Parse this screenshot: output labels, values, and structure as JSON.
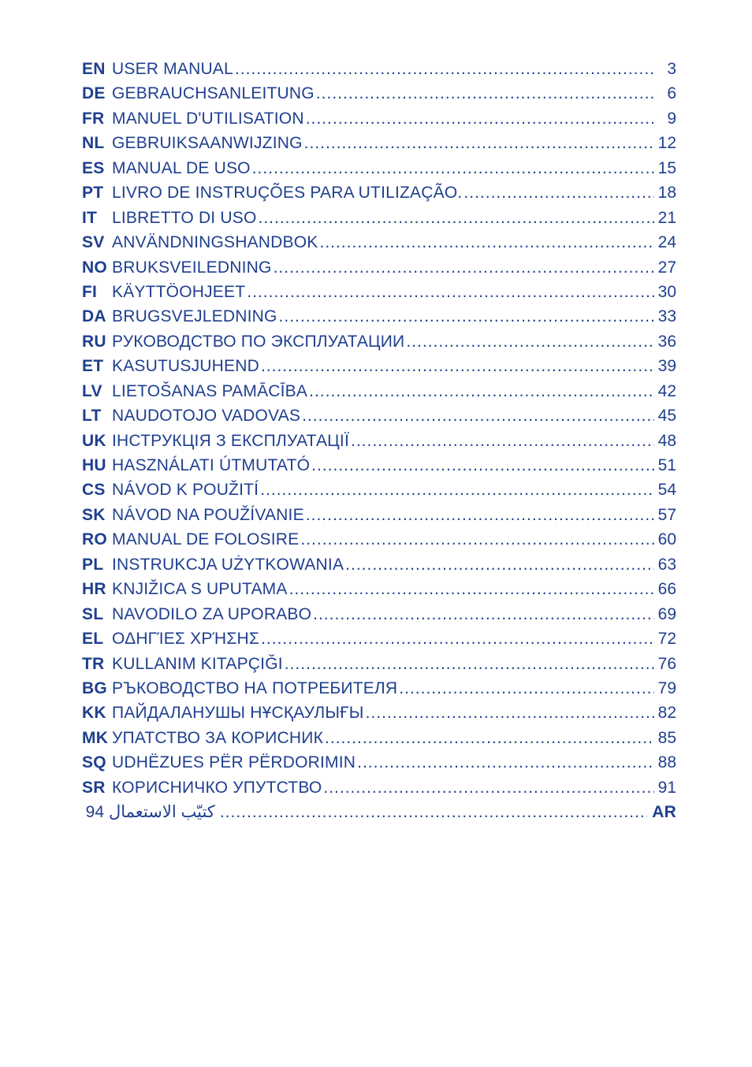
{
  "colors": {
    "text": "#1f3f8f",
    "background": "#ffffff"
  },
  "typography": {
    "font_family": "Arial, Helvetica, sans-serif",
    "font_size_pt": 16,
    "line_height": 1.45,
    "code_weight": "700",
    "title_weight": "400"
  },
  "toc": {
    "entries": [
      {
        "code": "EN",
        "title": "USER MANUAL",
        "page": 3
      },
      {
        "code": "DE",
        "title": "GEBRAUCHSANLEITUNG",
        "page": 6
      },
      {
        "code": "FR",
        "title": "MANUEL D'UTILISATION",
        "page": 9
      },
      {
        "code": "NL",
        "title": "GEBRUIKSAANWIJZING",
        "page": 12
      },
      {
        "code": "ES",
        "title": "MANUAL DE USO",
        "page": 15
      },
      {
        "code": "PT",
        "title": "LIVRO DE INSTRUÇÕES PARA UTILIZAÇÃO.",
        "page": 18
      },
      {
        "code": "IT",
        "title": "LIBRETTO DI USO",
        "page": 21
      },
      {
        "code": "SV",
        "title": "ANVÄNDNINGSHANDBOK",
        "page": 24
      },
      {
        "code": "NO",
        "title": "BRUKSVEILEDNING",
        "page": 27
      },
      {
        "code": "FI",
        "title": "KÄYTTÖOHJEET",
        "page": 30
      },
      {
        "code": "DA",
        "title": "BRUGSVEJLEDNING",
        "page": 33
      },
      {
        "code": "RU",
        "title": "РУКОВОДСТВО ПО ЭКСПЛУАТАЦИИ",
        "page": 36
      },
      {
        "code": "ET",
        "title": "KASUTUSJUHEND",
        "page": 39
      },
      {
        "code": "LV",
        "title": "LIETOŠANAS PAMĀCĪBA",
        "page": 42
      },
      {
        "code": "LT",
        "title": "NAUDOTOJO VADOVAS",
        "page": 45
      },
      {
        "code": "UK",
        "title": "ІНСТРУКЦІЯ З ЕКСПЛУАТАЦІЇ",
        "page": 48
      },
      {
        "code": "HU",
        "title": "HASZNÁLATI ÚTMUTATÓ",
        "page": 51
      },
      {
        "code": "CS",
        "title": "NÁVOD K POUŽITÍ",
        "page": 54
      },
      {
        "code": "SK",
        "title": "NÁVOD NA POUŽÍVANIE",
        "page": 57
      },
      {
        "code": "RO",
        "title": "MANUAL DE FOLOSIRE",
        "page": 60
      },
      {
        "code": "PL",
        "title": "INSTRUKCJA UŻYTKOWANIA",
        "page": 63
      },
      {
        "code": "HR",
        "title": "KNJIŽICA S UPUTAMA",
        "page": 66
      },
      {
        "code": "SL",
        "title": "NAVODILO ZA UPORABO",
        "page": 69
      },
      {
        "code": "EL",
        "title": "ΟΔΗΓΊΕΣ ΧΡΉΣΗΣ",
        "page": 72
      },
      {
        "code": "TR",
        "title": "KULLANIM KITAPÇIĞI",
        "page": 76
      },
      {
        "code": "BG",
        "title": "РЪКОВОДСТВО НА ПОТРЕБИТЕЛЯ",
        "page": 79
      },
      {
        "code": "KK",
        "title": "ПАЙДАЛАНУШЫ НҰСҚАУЛЫҒЫ",
        "page": 82
      },
      {
        "code": "MK",
        "title": "УПАТСТВО ЗА КОРИСНИК",
        "page": 85
      },
      {
        "code": "SQ",
        "title": "UDHËZUES PËR PËRDORIMIN",
        "page": 88
      },
      {
        "code": "SR",
        "title": "КОРИСНИЧКО УПУТСТВО",
        "page": 91
      }
    ],
    "ar_entry": {
      "code": "AR",
      "label": "كتيّب الاستعمال",
      "page": 94
    }
  }
}
